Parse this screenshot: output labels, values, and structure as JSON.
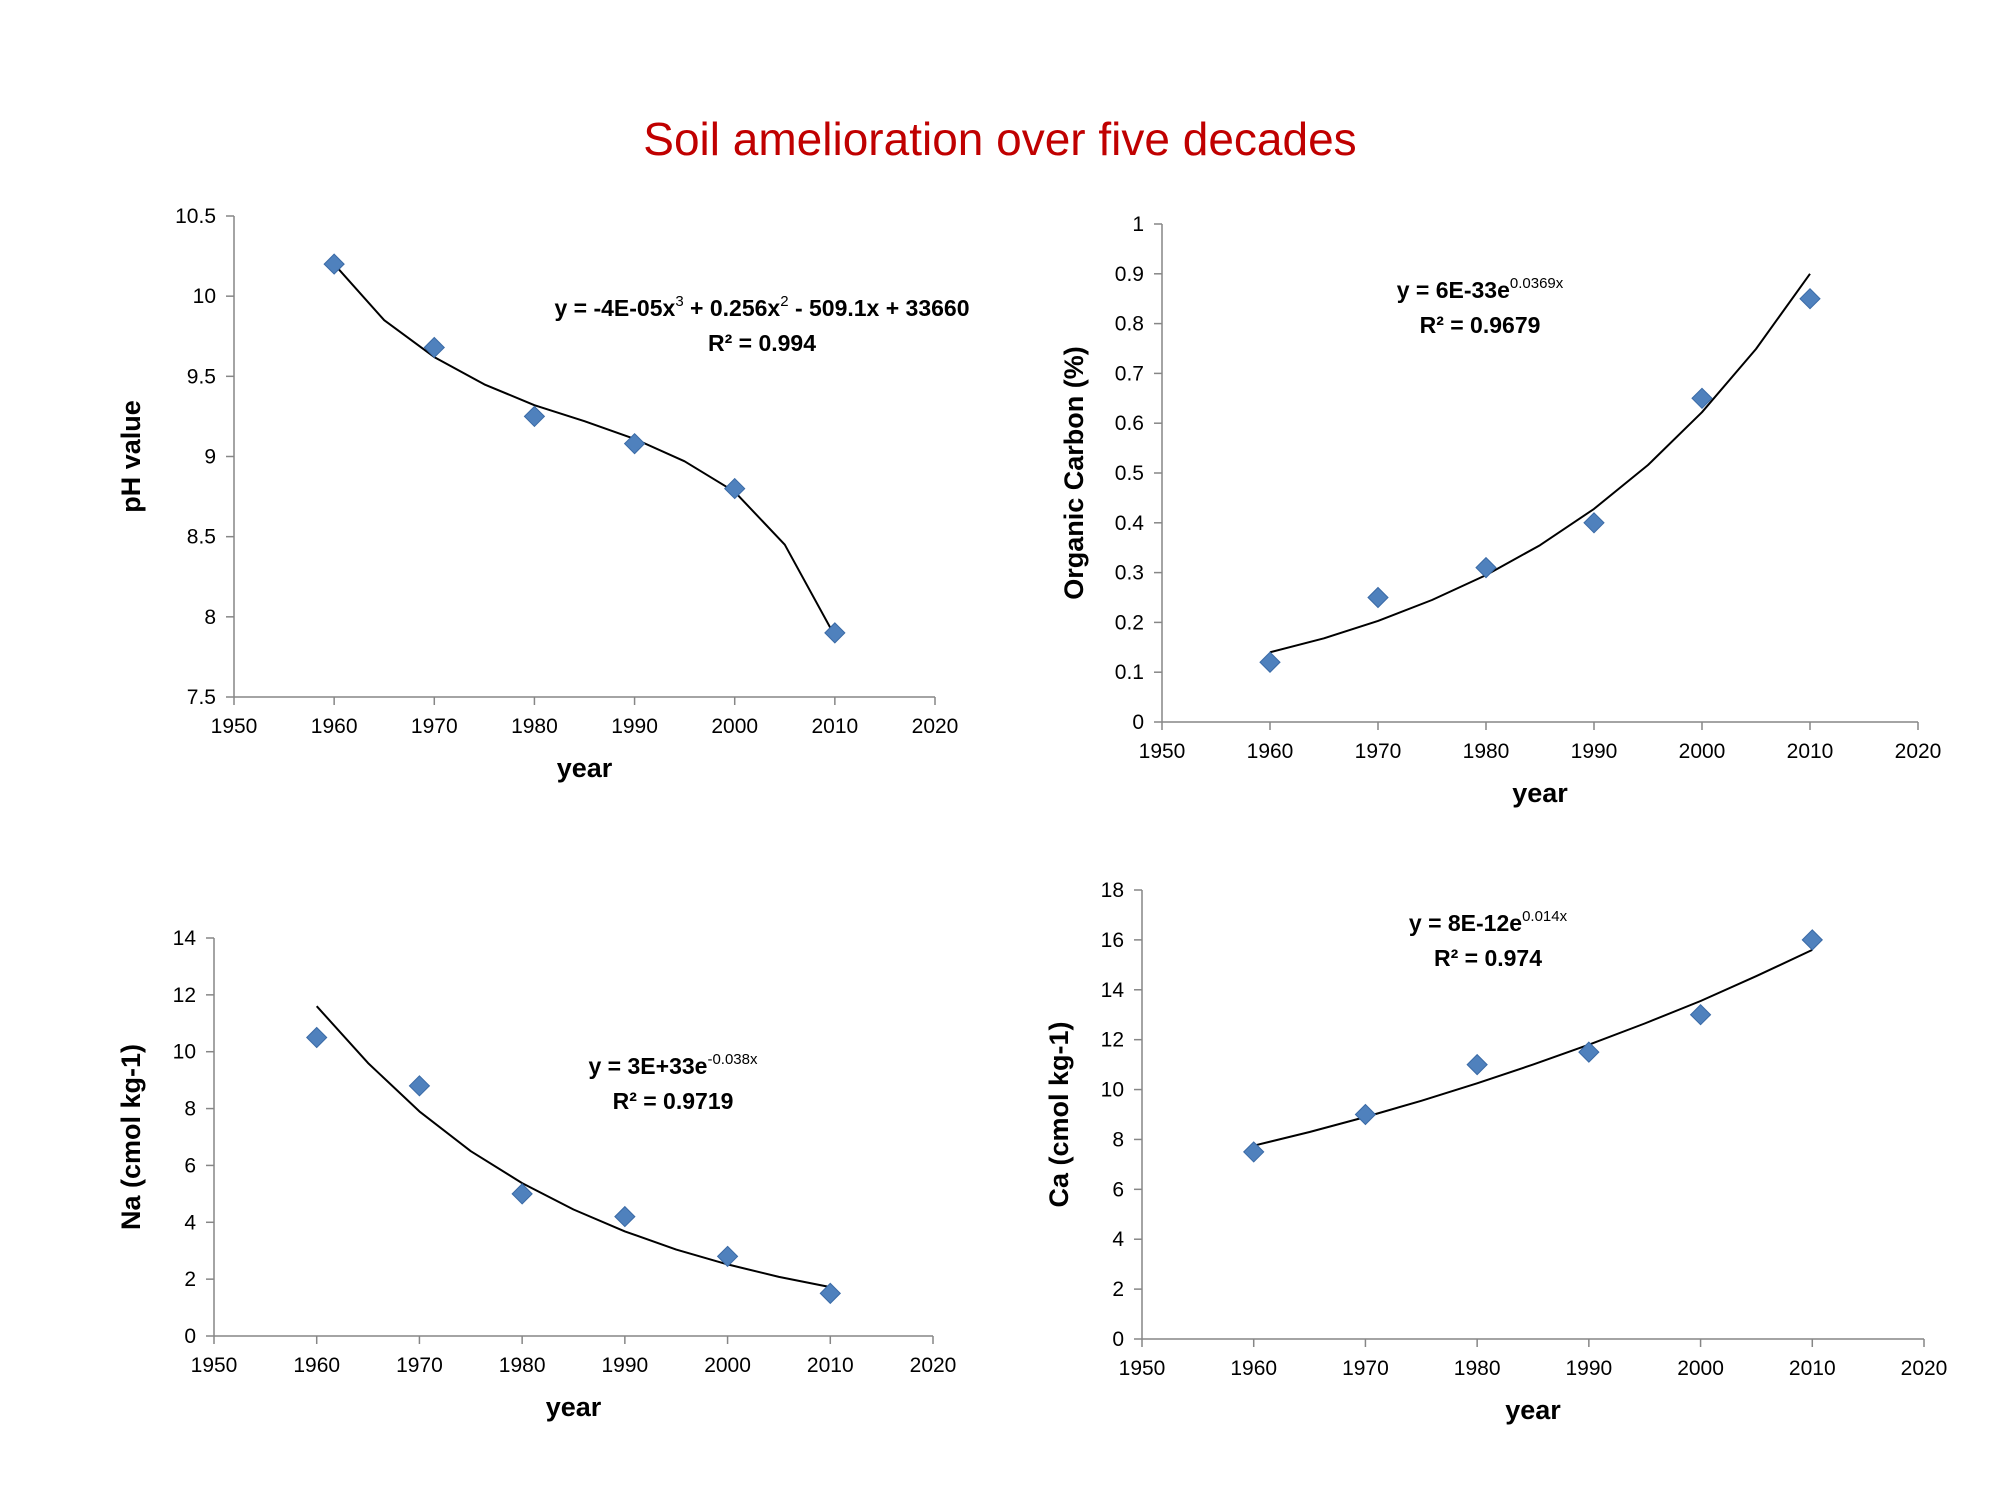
{
  "title": "Soil amelioration over five decades",
  "colors": {
    "title": "#c00000",
    "marker": "#4f81bd",
    "marker_stroke": "#3a6aa6",
    "trendline": "#000000",
    "axis": "#868686"
  },
  "chart_data": [
    {
      "type": "scatter",
      "xlabel": "year",
      "ylabel": "pH value",
      "xlim": [
        1950,
        2020
      ],
      "ylim": [
        7.5,
        10.5
      ],
      "x_ticks": [
        1950,
        1960,
        1970,
        1980,
        1990,
        2000,
        2010,
        2020
      ],
      "y_ticks": [
        7.5,
        8,
        8.5,
        9,
        9.5,
        10,
        10.5
      ],
      "y_tick_labels": [
        "7.5",
        "8",
        "8.5",
        "9",
        "9.5",
        "10",
        "10.5"
      ],
      "x": [
        1960,
        1970,
        1980,
        1990,
        2000,
        2010
      ],
      "y": [
        10.2,
        9.68,
        9.25,
        9.08,
        8.8,
        7.9
      ],
      "trendline": {
        "type": "polynomial",
        "equation": [
          {
            "text": "y = -4E-05x"
          },
          {
            "text": "3",
            "sup": true
          },
          {
            "text": " + 0.256x"
          },
          {
            "text": "2",
            "sup": true
          },
          {
            "text": " - 509.1x + 33660"
          }
        ],
        "r2": "R² = 0.994",
        "curve": [
          [
            1960,
            10.2
          ],
          [
            1965,
            9.85
          ],
          [
            1970,
            9.62
          ],
          [
            1975,
            9.45
          ],
          [
            1980,
            9.32
          ],
          [
            1985,
            9.22
          ],
          [
            1990,
            9.11
          ],
          [
            1995,
            8.97
          ],
          [
            2000,
            8.78
          ],
          [
            2005,
            8.45
          ],
          [
            2010,
            7.88
          ]
        ]
      }
    },
    {
      "type": "scatter",
      "xlabel": "year",
      "ylabel": "Organic Carbon (%)",
      "xlim": [
        1950,
        2020
      ],
      "ylim": [
        0,
        1
      ],
      "x_ticks": [
        1950,
        1960,
        1970,
        1980,
        1990,
        2000,
        2010,
        2020
      ],
      "y_ticks": [
        0,
        0.1,
        0.2,
        0.3,
        0.4,
        0.5,
        0.6,
        0.7,
        0.8,
        0.9,
        1
      ],
      "y_tick_labels": [
        "0",
        "0.1",
        "0.2",
        "0.3",
        "0.4",
        "0.5",
        "0.6",
        "0.7",
        "0.8",
        "0.9",
        "1"
      ],
      "x": [
        1960,
        1970,
        1980,
        1990,
        2000,
        2010
      ],
      "y": [
        0.12,
        0.25,
        0.31,
        0.4,
        0.65,
        0.85
      ],
      "trendline": {
        "type": "exponential",
        "equation": [
          {
            "text": "y = 6E-33e"
          },
          {
            "text": "0.0369x",
            "sup": true
          }
        ],
        "r2": "R² = 0.9679",
        "curve": [
          [
            1960,
            0.14
          ],
          [
            1965,
            0.168
          ],
          [
            1970,
            0.203
          ],
          [
            1975,
            0.245
          ],
          [
            1980,
            0.295
          ],
          [
            1985,
            0.355
          ],
          [
            1990,
            0.428
          ],
          [
            1995,
            0.516
          ],
          [
            2000,
            0.622
          ],
          [
            2005,
            0.749
          ],
          [
            2010,
            0.9
          ]
        ]
      }
    },
    {
      "type": "scatter",
      "xlabel": "year",
      "ylabel": "Na (cmol kg-1)",
      "xlim": [
        1950,
        2020
      ],
      "ylim": [
        0,
        14
      ],
      "x_ticks": [
        1950,
        1960,
        1970,
        1980,
        1990,
        2000,
        2010,
        2020
      ],
      "y_ticks": [
        0,
        2,
        4,
        6,
        8,
        10,
        12,
        14
      ],
      "y_tick_labels": [
        "0",
        "2",
        "4",
        "6",
        "8",
        "10",
        "12",
        "14"
      ],
      "x": [
        1960,
        1970,
        1980,
        1990,
        2000,
        2010
      ],
      "y": [
        10.5,
        8.8,
        5.0,
        4.2,
        2.8,
        1.5
      ],
      "trendline": {
        "type": "exponential",
        "equation": [
          {
            "text": "y = 3E+33e"
          },
          {
            "text": "-0.038x",
            "sup": true
          }
        ],
        "r2": "R² = 0.9719",
        "curve": [
          [
            1960,
            11.6
          ],
          [
            1965,
            9.6
          ],
          [
            1970,
            7.9
          ],
          [
            1975,
            6.5
          ],
          [
            1980,
            5.38
          ],
          [
            1985,
            4.45
          ],
          [
            1990,
            3.68
          ],
          [
            1995,
            3.04
          ],
          [
            2000,
            2.52
          ],
          [
            2005,
            2.08
          ],
          [
            2010,
            1.72
          ]
        ]
      }
    },
    {
      "type": "scatter",
      "xlabel": "year",
      "ylabel": "Ca (cmol kg-1)",
      "xlim": [
        1950,
        2020
      ],
      "ylim": [
        0,
        18
      ],
      "x_ticks": [
        1950,
        1960,
        1970,
        1980,
        1990,
        2000,
        2010,
        2020
      ],
      "y_ticks": [
        0,
        2,
        4,
        6,
        8,
        10,
        12,
        14,
        16,
        18
      ],
      "y_tick_labels": [
        "0",
        "2",
        "4",
        "6",
        "8",
        "10",
        "12",
        "14",
        "16",
        "18"
      ],
      "x": [
        1960,
        1970,
        1980,
        1990,
        2000,
        2010
      ],
      "y": [
        7.5,
        9.0,
        11.0,
        11.5,
        13.0,
        16.0
      ],
      "trendline": {
        "type": "exponential",
        "equation": [
          {
            "text": "y = 8E-12e"
          },
          {
            "text": "0.014x",
            "sup": true
          }
        ],
        "r2": "R² = 0.974",
        "curve": [
          [
            1960,
            7.75
          ],
          [
            1965,
            8.3
          ],
          [
            1970,
            8.9
          ],
          [
            1975,
            9.55
          ],
          [
            1980,
            10.25
          ],
          [
            1985,
            11.0
          ],
          [
            1990,
            11.8
          ],
          [
            1995,
            12.65
          ],
          [
            2000,
            13.55
          ],
          [
            2005,
            14.55
          ],
          [
            2010,
            15.6
          ]
        ]
      }
    }
  ]
}
